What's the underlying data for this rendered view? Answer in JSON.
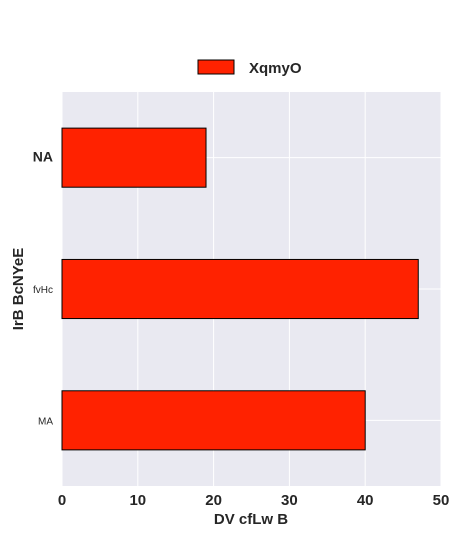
{
  "chart_data": {
    "type": "bar",
    "orientation": "horizontal",
    "categories": [
      "NA",
      "fvHc",
      "MA"
    ],
    "series": [
      {
        "name": "XqmyO",
        "values": [
          19,
          47,
          40
        ]
      }
    ],
    "xlabel": "DV cfLw B",
    "ylabel": "IrB BcNYeE",
    "xlim": [
      0,
      50
    ],
    "xticks": [
      0,
      10,
      20,
      30,
      40,
      50
    ],
    "grid": true,
    "legend_position": "top-center",
    "colors": {
      "bar": "#ff2200",
      "bar_edge": "#000000",
      "plot_background": "#e9e9f1",
      "grid": "#ffffff"
    }
  }
}
